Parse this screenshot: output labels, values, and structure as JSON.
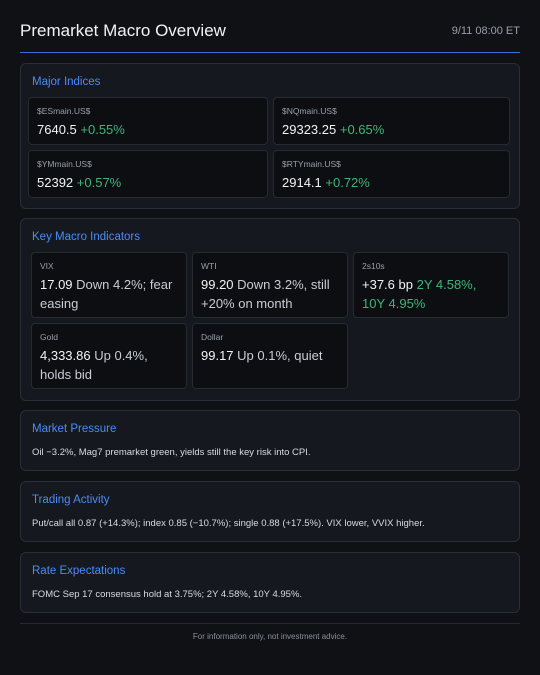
{
  "header": {
    "title": "Premarket Macro Overview",
    "timestamp": "9/11 08:00 ET"
  },
  "major_indices": {
    "title": "Major Indices",
    "cards": [
      {
        "label": "$ESmain.US$",
        "value": "7640.5",
        "change": "+0.55%"
      },
      {
        "label": "$NQmain.US$",
        "value": "29323.25",
        "change": "+0.65%"
      },
      {
        "label": "$YMmain.US$",
        "value": "52392",
        "change": "+0.57%"
      },
      {
        "label": "$RTYmain.US$",
        "value": "2914.1",
        "change": "+0.72%"
      }
    ]
  },
  "macro_indicators": {
    "title": "Key Macro Indicators",
    "cards": [
      {
        "label": "VIX",
        "value": "17.09",
        "note": "Down 4.2%; fear easing"
      },
      {
        "label": "WTI",
        "value": "99.20",
        "note": "Down 3.2%, still +20% on month"
      },
      {
        "label": "2s10s",
        "value": "+37.6 bp",
        "note": "2Y 4.58%, 10Y 4.95%"
      },
      {
        "label": "Gold",
        "value": "4,333.86",
        "note": "Up 0.4%, holds bid"
      },
      {
        "label": "Dollar",
        "value": "99.17",
        "note": "Up 0.1%, quiet"
      }
    ]
  },
  "sections": [
    {
      "title": "Market Pressure",
      "text": "Oil −3.2%, Mag7 premarket green, yields still the key risk into CPI."
    },
    {
      "title": "Trading Activity",
      "text": "Put/call all 0.87 (+14.3%); index 0.85 (−10.7%); single 0.88 (+17.5%). VIX lower, VVIX higher."
    },
    {
      "title": "Rate Expectations",
      "text": "FOMC Sep 17 consensus hold at 3.75%; 2Y 4.58%, 10Y 4.95%."
    }
  ],
  "footer": "For information only, not investment advice."
}
